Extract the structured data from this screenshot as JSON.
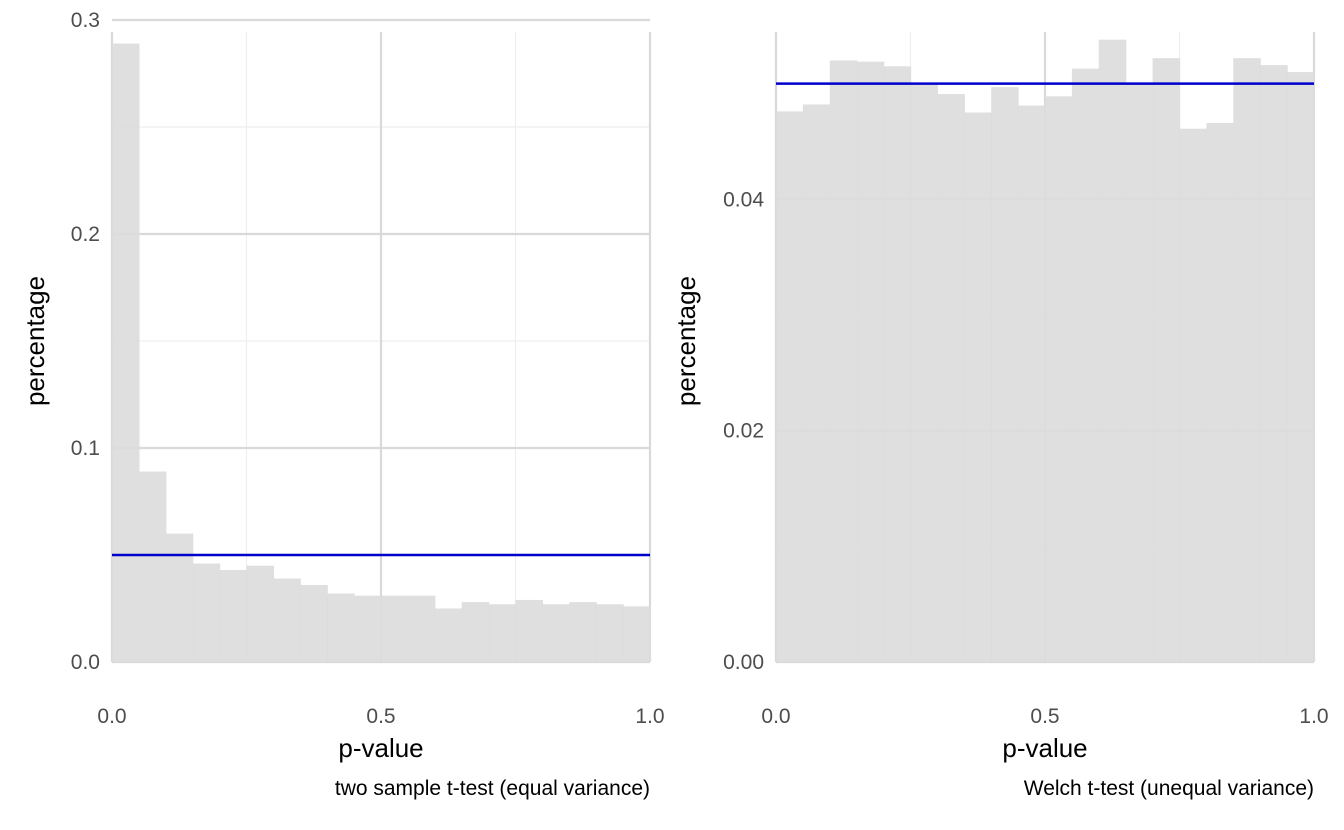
{
  "colors": {
    "bar_fill": "#dcdcdc",
    "grid_major": "#d9d9d9",
    "grid_minor": "#eeeeee",
    "reference_line": "#0000cc",
    "tick_text": "#4d4d4d",
    "title_text": "#000000"
  },
  "chart_data": [
    {
      "type": "bar",
      "subtype": "histogram",
      "xlabel": "p-value",
      "ylabel": "percentage",
      "caption": "two sample t-test (equal variance)",
      "xlim": [
        0,
        1
      ],
      "ylim": [
        0,
        0.3
      ],
      "bin_width": 0.05,
      "x_ticks": [
        0,
        0.5,
        1
      ],
      "x_tick_labels": [
        "0.0",
        "0.5",
        "1.0"
      ],
      "y_ticks": [
        0,
        0.1,
        0.2,
        0.3
      ],
      "y_tick_labels": [
        "0.0",
        "0.1",
        "0.2",
        "0.3"
      ],
      "y_minor_ticks": [
        0.05,
        0.15,
        0.25
      ],
      "x_minor_ticks": [
        0.25,
        0.75
      ],
      "bin_starts": [
        0,
        0.05,
        0.1,
        0.15,
        0.2,
        0.25,
        0.3,
        0.35,
        0.4,
        0.45,
        0.5,
        0.55,
        0.6,
        0.65,
        0.7,
        0.75,
        0.8,
        0.85,
        0.9,
        0.95
      ],
      "values": [
        0.289,
        0.089,
        0.06,
        0.046,
        0.043,
        0.045,
        0.039,
        0.036,
        0.032,
        0.031,
        0.031,
        0.031,
        0.025,
        0.028,
        0.027,
        0.029,
        0.027,
        0.028,
        0.027,
        0.026
      ],
      "reference_line_y": 0.05,
      "grid": true,
      "legend": "none"
    },
    {
      "type": "bar",
      "subtype": "histogram",
      "xlabel": "p-value",
      "ylabel": "percentage",
      "caption": "Welch t-test (unequal variance)",
      "xlim": [
        0,
        1
      ],
      "ylim": [
        0,
        0.0555
      ],
      "bin_width": 0.05,
      "x_ticks": [
        0,
        0.5,
        1
      ],
      "x_tick_labels": [
        "0.0",
        "0.5",
        "1.0"
      ],
      "y_ticks": [
        0,
        0.02,
        0.04
      ],
      "y_tick_labels": [
        "0.00",
        "0.02",
        "0.04"
      ],
      "y_minor_ticks": [
        0.01,
        0.03,
        0.05
      ],
      "x_minor_ticks": [
        0.25,
        0.75
      ],
      "bin_starts": [
        0,
        0.05,
        0.1,
        0.15,
        0.2,
        0.25,
        0.3,
        0.35,
        0.4,
        0.45,
        0.5,
        0.55,
        0.6,
        0.65,
        0.7,
        0.75,
        0.8,
        0.85,
        0.9,
        0.95
      ],
      "values": [
        0.0476,
        0.0482,
        0.052,
        0.0519,
        0.0515,
        0.0499,
        0.0491,
        0.0475,
        0.0497,
        0.0481,
        0.0489,
        0.0513,
        0.0538,
        0.05,
        0.0522,
        0.0461,
        0.0466,
        0.0522,
        0.0516,
        0.051
      ],
      "reference_line_y": 0.05,
      "grid": true,
      "legend": "none"
    }
  ]
}
